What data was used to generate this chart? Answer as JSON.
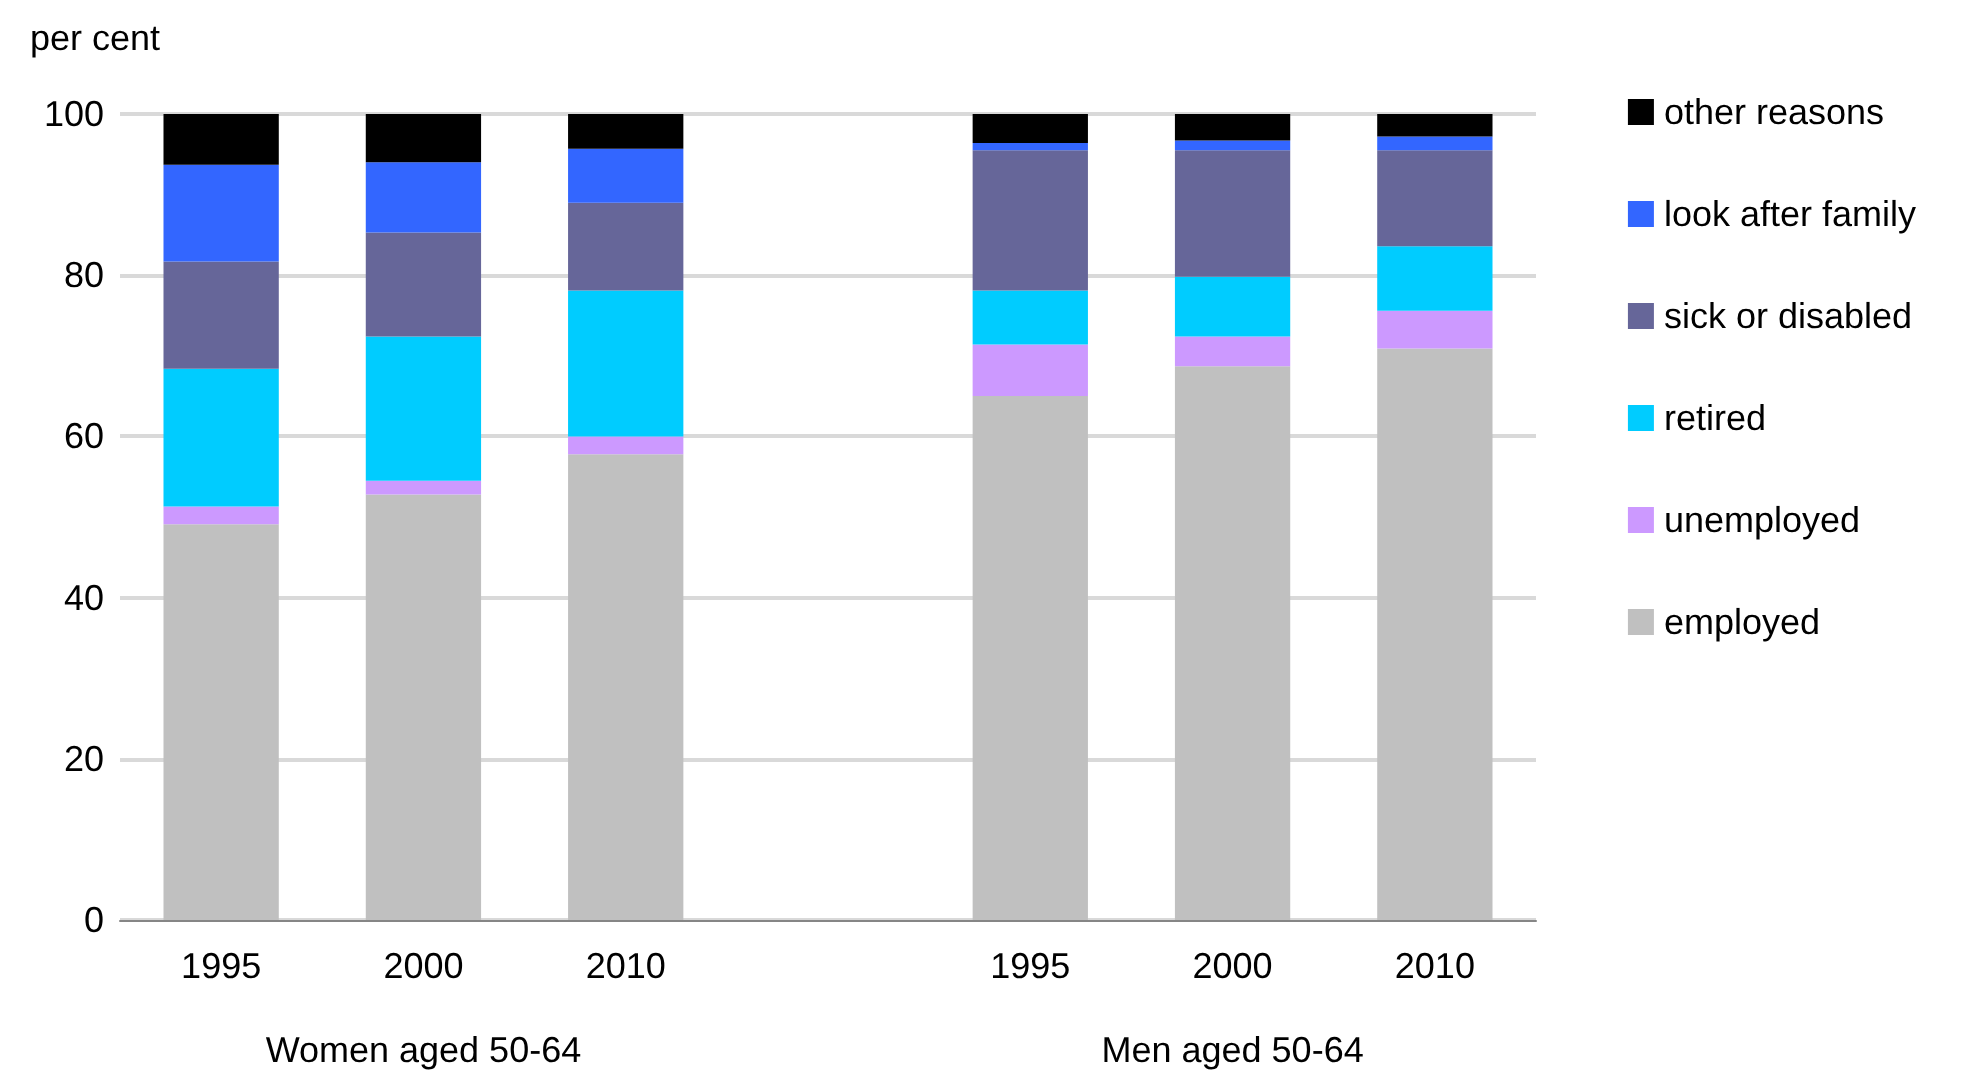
{
  "chart_data": {
    "type": "bar",
    "stacked": true,
    "ylabel": "per cent",
    "categories": [
      "1995",
      "2000",
      "2010",
      null,
      "1995",
      "2000",
      "2010"
    ],
    "series": [
      {
        "name": "employed",
        "color": "#c0c0c0",
        "values": [
          49.1,
          52.8,
          57.8,
          null,
          65.0,
          68.7,
          70.9
        ]
      },
      {
        "name": "unemployed",
        "color": "#cc99ff",
        "values": [
          2.2,
          1.7,
          2.2,
          null,
          6.4,
          3.7,
          4.7
        ]
      },
      {
        "name": "retired",
        "color": "#00ccff",
        "values": [
          17.1,
          17.9,
          18.1,
          null,
          6.7,
          7.4,
          8.0
        ]
      },
      {
        "name": "sick or disabled",
        "color": "#666699",
        "values": [
          13.3,
          12.9,
          10.9,
          null,
          17.4,
          15.7,
          11.9
        ]
      },
      {
        "name": "look after family",
        "color": "#3366ff",
        "values": [
          12.0,
          8.7,
          6.7,
          null,
          0.9,
          1.2,
          1.7
        ]
      },
      {
        "name": "other reasons",
        "color": "#000000",
        "values": [
          6.3,
          6.0,
          4.3,
          null,
          3.6,
          3.3,
          2.8
        ]
      }
    ],
    "ylim": [
      0,
      100
    ],
    "yticks": [
      0,
      20,
      40,
      60,
      80,
      100
    ],
    "grid": "y",
    "legend": "right",
    "annotations": [
      "Women aged 50-64",
      "Men aged 50-64"
    ]
  }
}
